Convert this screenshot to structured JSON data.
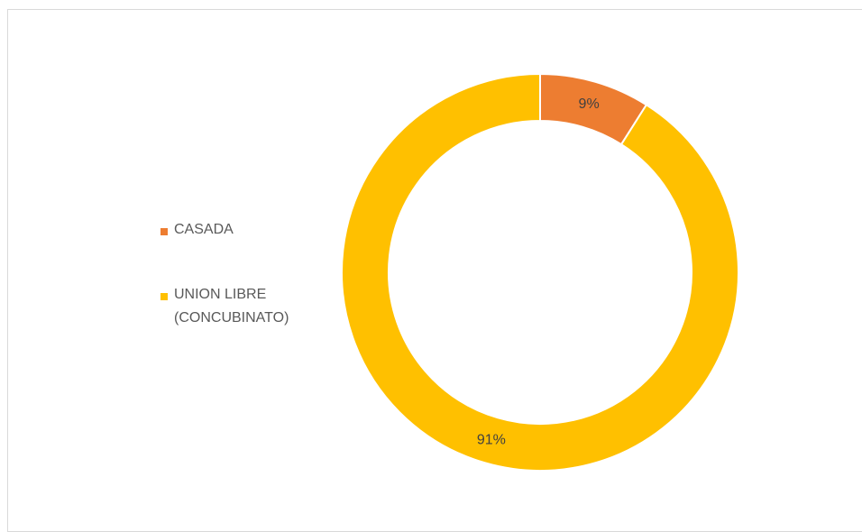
{
  "chart_data": {
    "type": "donut",
    "categories": [
      "CASADA",
      "UNION LIBRE (CONCUBINATO)"
    ],
    "values": [
      9,
      91
    ],
    "value_labels": [
      "9%",
      "91%"
    ],
    "colors": [
      "#ED7D31",
      "#FFC000"
    ],
    "legend": "left"
  }
}
